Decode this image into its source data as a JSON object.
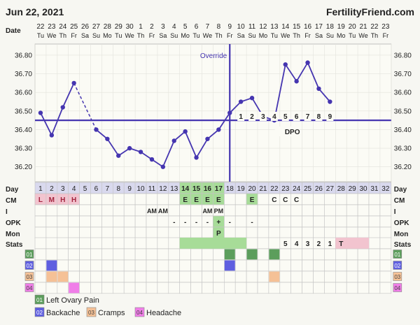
{
  "header": {
    "start_date": "Jun 22, 2021",
    "site": "FertilityFriend.com"
  },
  "labels": {
    "date": "Date",
    "day": "Day",
    "cm": "CM",
    "i": "I",
    "opk": "OPK",
    "mon": "Mon",
    "stats": "Stats",
    "override": "Override",
    "dpo": "DPO"
  },
  "dates": [
    "22",
    "23",
    "24",
    "25",
    "26",
    "27",
    "28",
    "29",
    "30",
    "1",
    "2",
    "3",
    "4",
    "5",
    "6",
    "7",
    "8",
    "9",
    "10",
    "11",
    "12",
    "13",
    "14",
    "15",
    "16",
    "17",
    "18",
    "19",
    "20",
    "21",
    "22",
    "23"
  ],
  "weekdays": [
    "Tu",
    "We",
    "Th",
    "Fr",
    "Sa",
    "Su",
    "Mo",
    "Tu",
    "We",
    "Th",
    "Fr",
    "Sa",
    "Su",
    "Mo",
    "Tu",
    "We",
    "Th",
    "Fr",
    "Sa",
    "Su",
    "Mo",
    "Tu",
    "We",
    "Th",
    "Fr",
    "Sa",
    "Su",
    "Mo",
    "Tu",
    "We",
    "Th",
    "Fr"
  ],
  "days": [
    "1",
    "2",
    "3",
    "4",
    "5",
    "6",
    "7",
    "8",
    "9",
    "10",
    "11",
    "12",
    "13",
    "14",
    "15",
    "16",
    "17",
    "18",
    "19",
    "20",
    "21",
    "22",
    "23",
    "24",
    "25",
    "26",
    "27",
    "28",
    "29",
    "30",
    "31",
    "32"
  ],
  "cm_row": [
    "L",
    "M",
    "H",
    "H",
    "",
    "",
    "",
    "",
    "",
    "",
    "",
    "",
    "",
    "E",
    "E",
    "E",
    "E",
    "",
    "",
    "E",
    "",
    "C",
    "C",
    "C",
    "",
    "",
    "",
    "",
    "",
    "",
    "",
    ""
  ],
  "i_row": [
    "",
    "",
    "",
    "",
    "",
    "",
    "",
    "",
    "",
    "",
    "AM",
    "AM",
    "",
    "",
    "",
    "AM",
    "PM",
    "",
    "",
    "",
    "",
    "",
    "",
    "",
    "",
    "",
    "",
    "",
    "",
    "",
    "",
    ""
  ],
  "opk_row": [
    "",
    "",
    "",
    "",
    "",
    "",
    "",
    "",
    "",
    "",
    "",
    "",
    "-",
    "-",
    "-",
    "-",
    "+",
    "-",
    "",
    "-",
    "",
    "",
    "",
    "",
    "",
    "",
    "",
    "",
    "",
    "",
    "",
    ""
  ],
  "mon_row": [
    "",
    "",
    "",
    "",
    "",
    "",
    "",
    "",
    "",
    "",
    "",
    "",
    "",
    "",
    "",
    "",
    "P",
    "",
    "",
    "",
    "",
    "",
    "",
    "",
    "",
    "",
    "",
    "",
    "",
    "",
    "",
    ""
  ],
  "stats_row": [
    "",
    "",
    "",
    "",
    "",
    "",
    "",
    "",
    "",
    "",
    "",
    "",
    "",
    "",
    "",
    "",
    "",
    "",
    "",
    "",
    "",
    "",
    "5",
    "4",
    "3",
    "2",
    "1",
    "T",
    "",
    "",
    "",
    ""
  ],
  "dpo_numbers": [
    "1",
    "2",
    "3",
    "4",
    "5",
    "6",
    "7",
    "8",
    "9"
  ],
  "chart_data": {
    "type": "line",
    "title": "",
    "ylabel": "",
    "xlabel": "Day",
    "ylim": [
      36.12,
      36.86
    ],
    "yticks": [
      "36.20",
      "36.30",
      "36.40",
      "36.50",
      "36.60",
      "36.70",
      "36.80"
    ],
    "coverline": 36.45,
    "ovulation_day": 18,
    "series": [
      {
        "values": [
          36.49,
          36.37,
          36.52,
          36.65,
          null,
          36.4,
          36.35,
          36.26,
          36.3,
          36.28,
          36.24,
          36.2,
          36.34,
          36.39,
          36.25,
          36.35,
          36.4,
          36.49,
          36.55,
          36.57,
          36.47,
          36.45,
          36.75,
          36.66,
          36.76,
          36.62,
          36.55,
          null,
          null,
          null,
          null,
          null
        ]
      }
    ],
    "interpolated_gap": [
      4,
      6
    ]
  },
  "symptoms": {
    "rows": [
      {
        "code": "01",
        "label": "Left Ovary Pain",
        "color": "#5c9e5c",
        "days": [
          18,
          20,
          22
        ]
      },
      {
        "code": "02",
        "label": "Backache",
        "color": "#5f5fe0",
        "days": [
          2,
          18
        ]
      },
      {
        "code": "03",
        "label": "Cramps",
        "color": "#f5c196",
        "days": [
          2,
          3,
          22
        ]
      },
      {
        "code": "04",
        "label": "Headache",
        "color": "#f07ee8",
        "days": [
          4
        ]
      }
    ]
  },
  "colors": {
    "line": "#4535b0",
    "menses_bg": "#f2c4cf",
    "menses_text": "#a3253f",
    "fertile_bg": "#a7dc98",
    "stats_pink": "#f2c4cf",
    "grid": "#b8b8b8",
    "day_row_bg": "#d9d9ee",
    "cm_cell_bg": "#ffffff"
  }
}
